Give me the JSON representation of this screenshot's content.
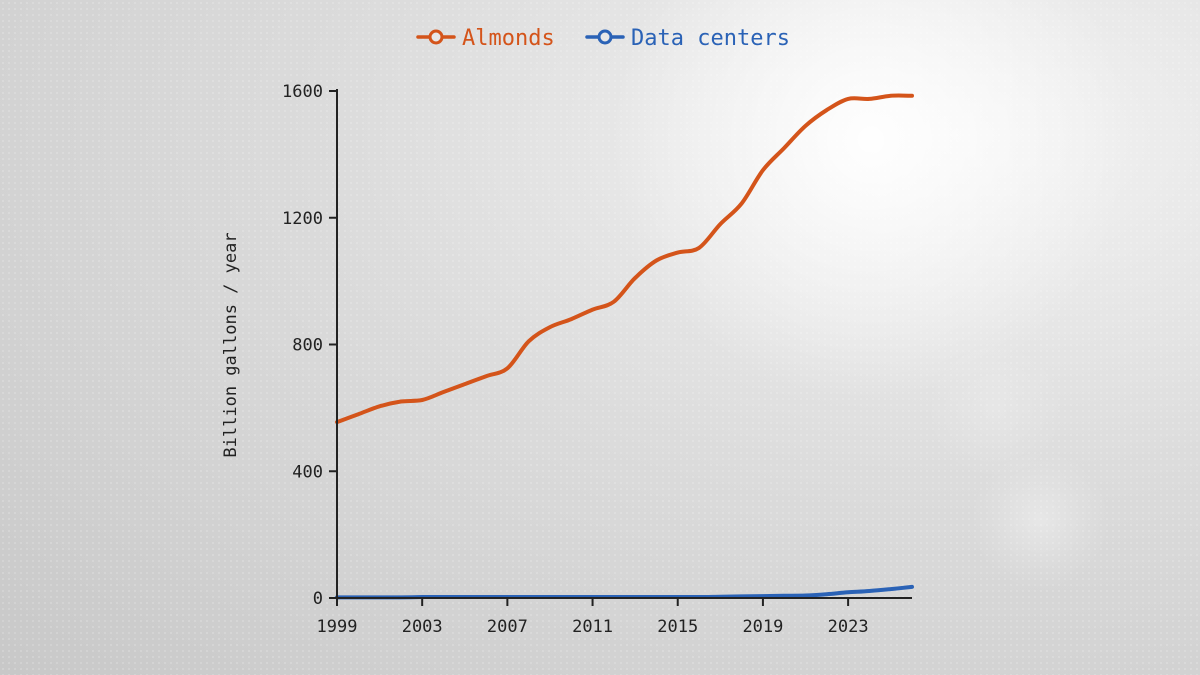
{
  "chart_data": {
    "type": "line",
    "title": "",
    "xlabel": "",
    "ylabel": "Billion gallons / year",
    "xlim": [
      1999,
      2026
    ],
    "ylim": [
      0,
      1600
    ],
    "x_ticks": [
      1999,
      2003,
      2007,
      2011,
      2015,
      2019,
      2023
    ],
    "y_ticks": [
      0,
      400,
      800,
      1200,
      1600
    ],
    "grid": false,
    "legend": "top-center",
    "x": [
      1999,
      2000,
      2001,
      2002,
      2003,
      2004,
      2005,
      2006,
      2007,
      2008,
      2009,
      2010,
      2011,
      2012,
      2013,
      2014,
      2015,
      2016,
      2017,
      2018,
      2019,
      2020,
      2021,
      2022,
      2023,
      2024,
      2025,
      2026
    ],
    "series": [
      {
        "name": "Almonds",
        "color": "#d4541a",
        "values": [
          555,
          580,
          605,
          620,
          625,
          650,
          675,
          700,
          725,
          810,
          855,
          880,
          910,
          935,
          1010,
          1065,
          1090,
          1105,
          1180,
          1245,
          1350,
          1420,
          1490,
          1540,
          1575,
          1575,
          1585,
          1585
        ]
      },
      {
        "name": "Data centers",
        "color": "#2a62b6",
        "values": [
          2,
          2,
          2,
          2,
          3,
          3,
          3,
          3,
          3,
          3,
          3,
          3,
          3,
          3,
          3,
          3,
          3,
          3,
          4,
          5,
          6,
          7,
          8,
          12,
          18,
          22,
          28,
          35
        ]
      }
    ]
  }
}
